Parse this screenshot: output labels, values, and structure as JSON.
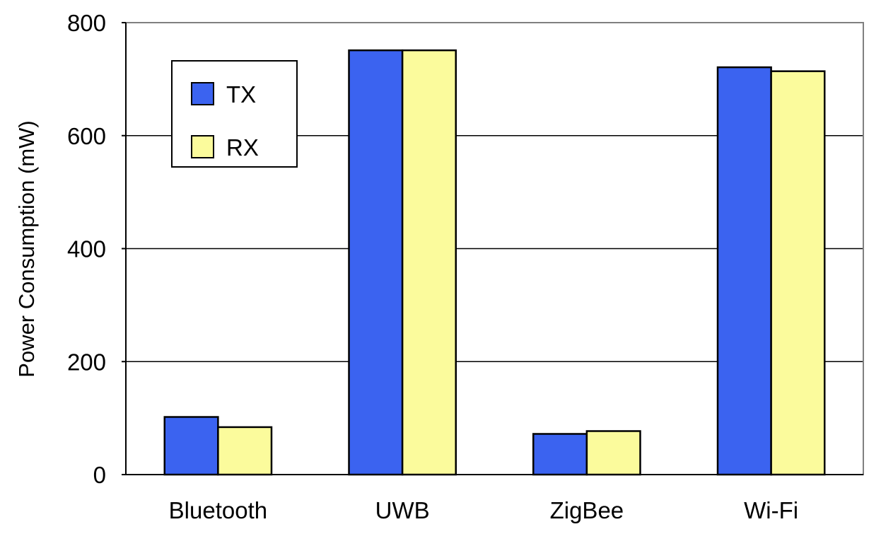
{
  "chart_data": {
    "type": "bar",
    "title": "",
    "xlabel": "",
    "ylabel": "Power Consumption (mW)",
    "categories": [
      "Bluetooth",
      "UWB",
      "ZigBee",
      "Wi-Fi"
    ],
    "series": [
      {
        "name": "TX",
        "values": [
          102,
          751,
          72,
          721
        ]
      },
      {
        "name": "RX",
        "values": [
          84,
          751,
          77,
          714
        ]
      }
    ],
    "ylim": [
      0,
      800
    ],
    "yticks": [
      0,
      200,
      400,
      600,
      800
    ],
    "grid": true,
    "legend_position": "top-left",
    "colors": {
      "TX": "#3b63f0",
      "RX": "#fbfb9c",
      "bar_edge": "#000000",
      "grid": "#000000",
      "frame": "#808080"
    }
  }
}
